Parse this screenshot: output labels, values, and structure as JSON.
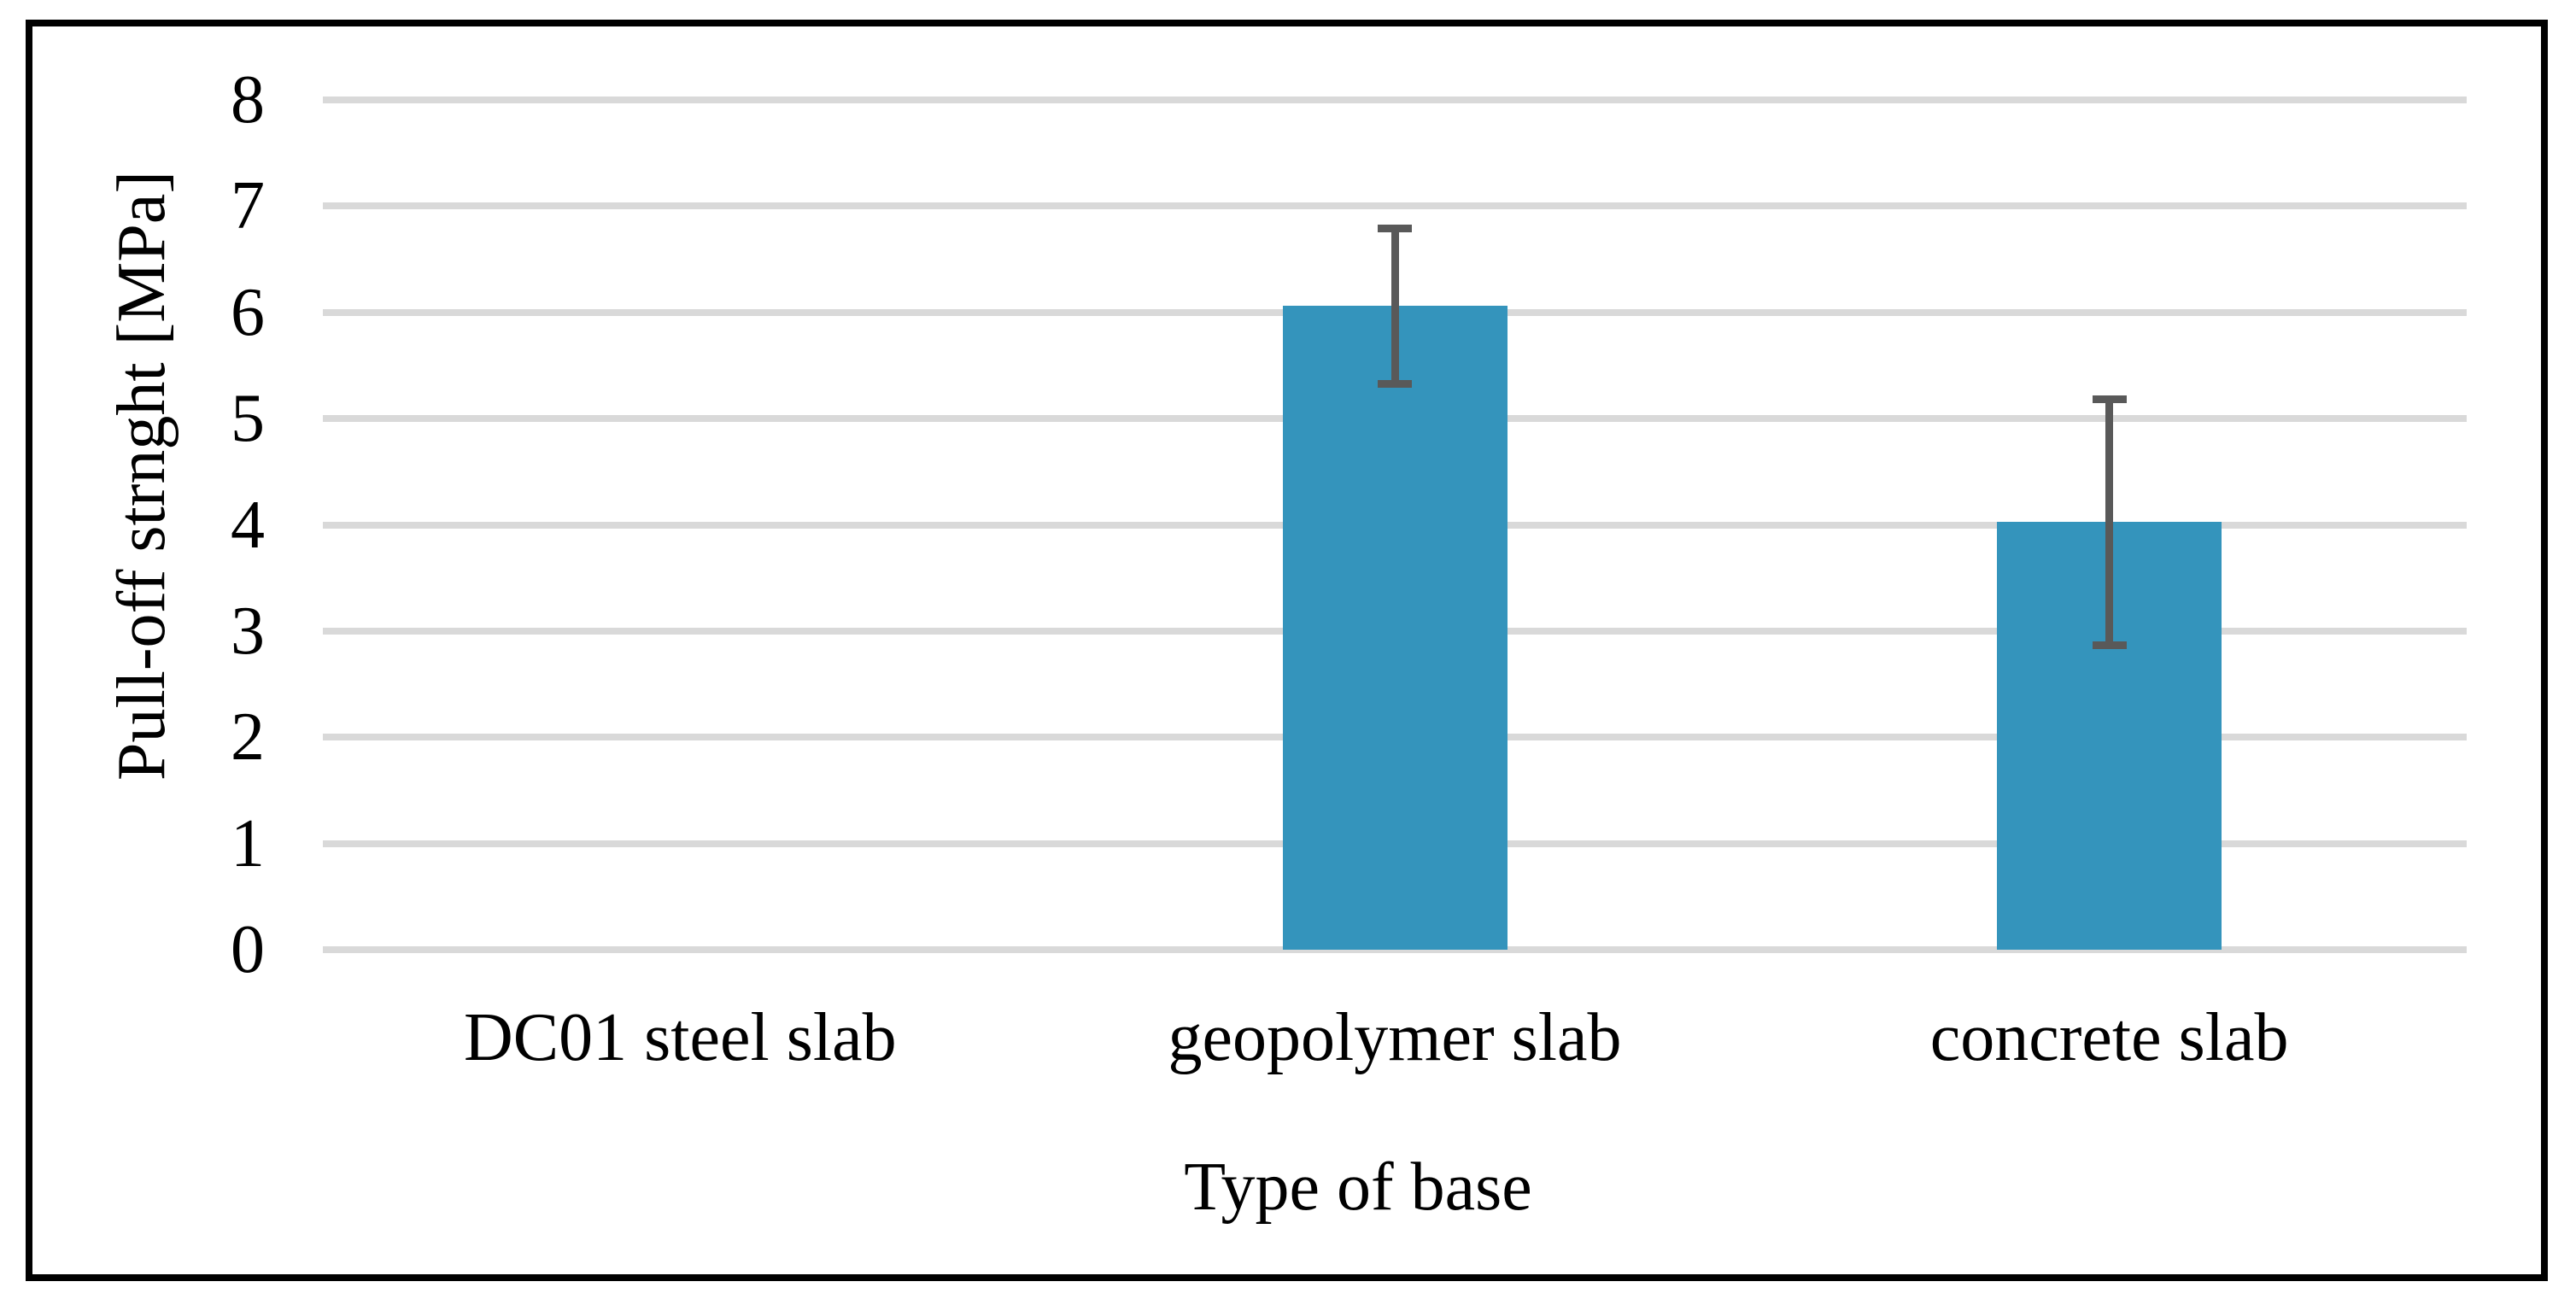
{
  "figure": {
    "background_color": "#ffffff",
    "frame_border_color": "#000000"
  },
  "chart_data": {
    "type": "bar",
    "title": "",
    "xlabel": "Type of base",
    "ylabel": "Pull-off strnght [MPa]",
    "categories": [
      "DC01 steel slab",
      "geopolymer slab",
      "concrete slab"
    ],
    "values": [
      0,
      6.06,
      4.03
    ],
    "error_bars": [
      {
        "low": null,
        "high": null
      },
      {
        "low": 5.29,
        "high": 6.83
      },
      {
        "low": 2.83,
        "high": 5.22
      }
    ],
    "ylim": [
      0,
      8
    ],
    "yticks": [
      0,
      1,
      2,
      3,
      4,
      5,
      6,
      7,
      8
    ],
    "grid": true,
    "legend_position": "none",
    "colors": {
      "bar": "#3494bc",
      "error_bar": "#595959",
      "gridline": "#d9d9d9",
      "text": "#000000"
    }
  }
}
